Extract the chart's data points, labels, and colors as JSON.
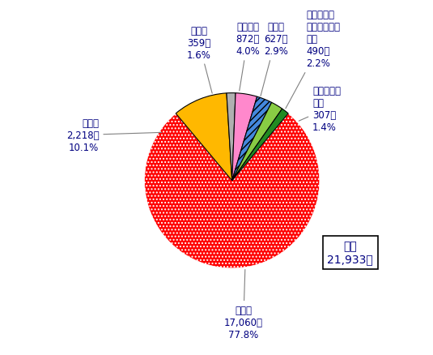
{
  "slices": [
    {
      "label": "中国籍\n17,060件\n77.8%",
      "value": 17060,
      "pct": 77.8,
      "color": "#FF0000",
      "hatch": "...."
    },
    {
      "label": "韓国籍\n2,218件\n10.1%",
      "value": 2218,
      "pct": 10.1,
      "color": "#FFB800",
      "hatch": ""
    },
    {
      "label": "その他\n359件\n1.6%",
      "value": 359,
      "pct": 1.6,
      "color": "#B0B0B0",
      "hatch": ""
    },
    {
      "label": "日本国籍\n872件\n4.0%",
      "value": 872,
      "pct": 4.0,
      "color": "#FF88CC",
      "hatch": ""
    },
    {
      "label": "米国籍\n627件\n2.9%",
      "value": 627,
      "pct": 2.9,
      "color": "#4488DD",
      "hatch": "////"
    },
    {
      "label": "欧州（ノル\nウェー除く）\n国籍\n490件\n2.2%",
      "value": 490,
      "pct": 2.2,
      "color": "#88CC44",
      "hatch": ""
    },
    {
      "label": "ノルウェー\n国籍\n307件\n1.4%",
      "value": 307,
      "pct": 1.4,
      "color": "#228B22",
      "hatch": ""
    }
  ],
  "total_label": "合計\n21,933件",
  "background_color": "#FFFFFF",
  "label_font_size": 8.5
}
